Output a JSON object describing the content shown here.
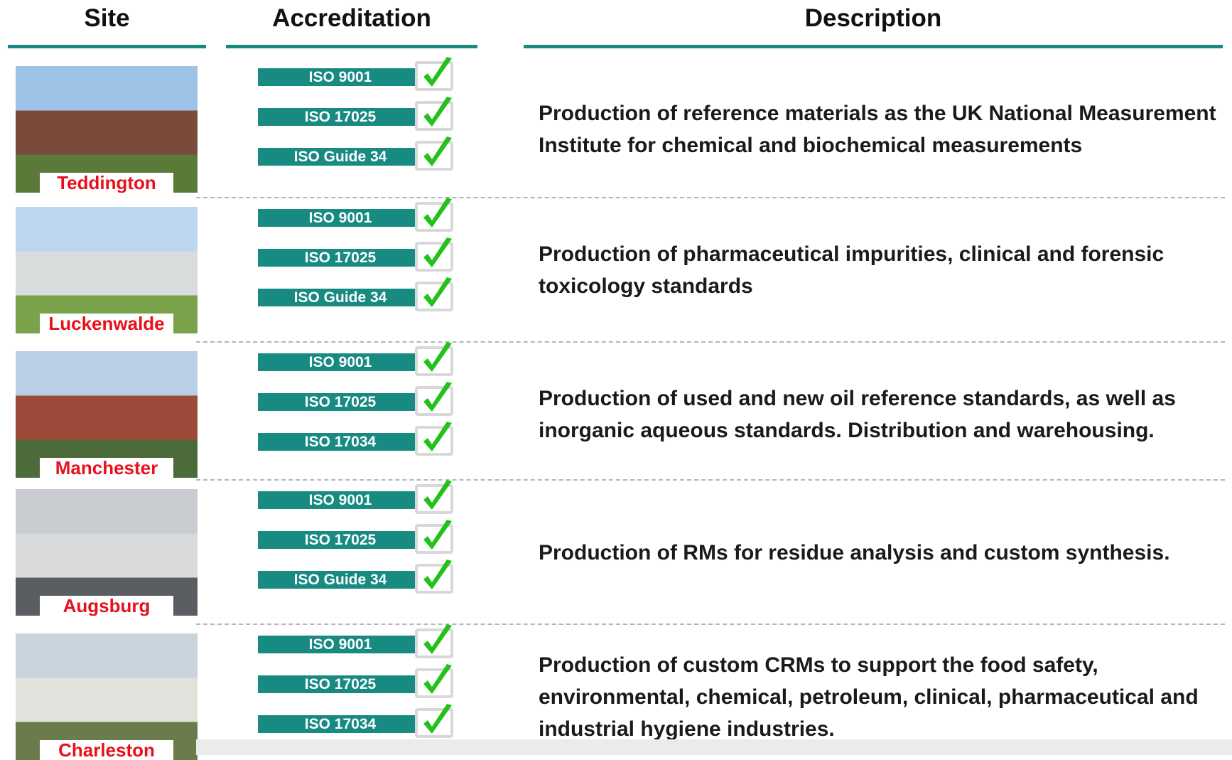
{
  "header": {
    "columns": [
      "Site",
      "Accreditation",
      "Description"
    ]
  },
  "rows": [
    {
      "site": "Teddington",
      "accreditations": [
        "ISO 9001",
        "ISO 17025",
        "ISO Guide 34"
      ],
      "description": "Production of reference materials as the UK National Measurement Institute for chemical and biochemical measurements"
    },
    {
      "site": "Luckenwalde",
      "accreditations": [
        "ISO 9001",
        "ISO 17025",
        "ISO Guide 34"
      ],
      "description": "Production of pharmaceutical impurities, clinical and forensic toxicology standards"
    },
    {
      "site": "Manchester",
      "accreditations": [
        "ISO 9001",
        "ISO 17025",
        "ISO 17034"
      ],
      "description": "Production of used and new oil reference standards, as well as inorganic aqueous standards. Distribution and warehousing."
    },
    {
      "site": "Augsburg",
      "accreditations": [
        "ISO 9001",
        "ISO 17025",
        "ISO Guide 34"
      ],
      "description": "Production of RMs for residue analysis and custom synthesis."
    },
    {
      "site": "Charleston",
      "accreditations": [
        "ISO 9001",
        "ISO 17025",
        "ISO 17034"
      ],
      "description": "Production of custom CRMs to support the food safety, environmental, chemical, petroleum, clinical, pharmaceutical and industrial hygiene industries."
    }
  ]
}
